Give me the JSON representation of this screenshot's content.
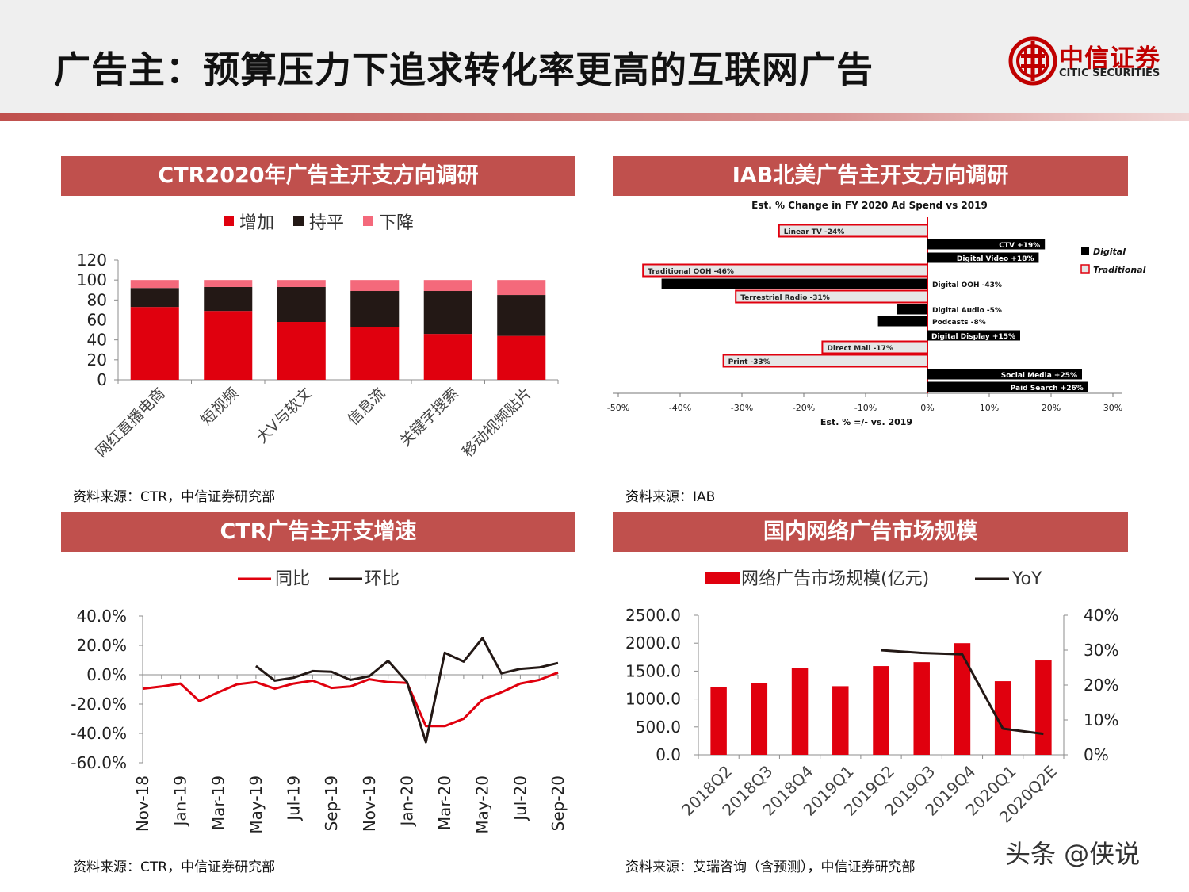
{
  "header": {
    "title": "广告主：预算压力下追求转化率更高的互联网广告",
    "logo_cn": "中信证券",
    "logo_en": "CITIC SECURITIES",
    "brand_color": "#c00000"
  },
  "panels": {
    "p1": {
      "title": "CTR2020年广告主开支方向调研",
      "source": "资料来源：CTR，中信证券研究部"
    },
    "p2": {
      "title": "IAB北美广告主开支方向调研",
      "source": "资料来源：IAB"
    },
    "p3": {
      "title": "CTR广告主开支增速",
      "source": "资料来源：CTR，中信证券研究部"
    },
    "p4": {
      "title": "国内网络广告市场规模",
      "source": "资料来源：艾瑞咨询（含预测），中信证券研究部"
    }
  },
  "watermark": "头条 @侠说",
  "chart_data": [
    {
      "type": "bar",
      "stacked": true,
      "categories": [
        "网红直播电商",
        "短视频",
        "大V与软文",
        "信息流",
        "关键字搜索",
        "移动视频贴片"
      ],
      "series": [
        {
          "name": "增加",
          "color": "#e0000e",
          "values": [
            73,
            69,
            58,
            53,
            46,
            44
          ]
        },
        {
          "name": "持平",
          "color": "#231815",
          "values": [
            19,
            24,
            35,
            36,
            43,
            41
          ]
        },
        {
          "name": "下降",
          "color": "#f4697b",
          "values": [
            8,
            7,
            7,
            11,
            11,
            15
          ]
        }
      ],
      "yticks": [
        "0",
        "20",
        "40",
        "60",
        "80",
        "100",
        "120"
      ],
      "ylim": [
        0,
        120
      ],
      "legend": "top"
    },
    {
      "type": "bar",
      "orientation": "horizontal",
      "title": "Est. % Change in FY 2020 Ad Spend vs 2019",
      "xlabel": "Est. % =/- vs. 2019",
      "xlim": [
        -50,
        30
      ],
      "xticks": [
        "-50%",
        "-40%",
        "-30%",
        "-20%",
        "-10%",
        "0%",
        "10%",
        "20%",
        "30%"
      ],
      "legend_labels": [
        "Digital",
        "Traditional"
      ],
      "legend": "right",
      "colors": {
        "digital": "#000000",
        "traditional": "#e6e6e6",
        "traditional_border": "#e0000e"
      },
      "bars": [
        {
          "label": "Linear TV -24%",
          "value": -24,
          "kind": "traditional"
        },
        {
          "label": "CTV +19%",
          "value": 19,
          "kind": "digital"
        },
        {
          "label": "Digital Video +18%",
          "value": 18,
          "kind": "digital"
        },
        {
          "label": "Traditional OOH -46%",
          "value": -46,
          "kind": "traditional"
        },
        {
          "label": "Digital OOH -43%",
          "value": -43,
          "kind": "digital"
        },
        {
          "label": "Terrestrial Radio -31%",
          "value": -31,
          "kind": "traditional"
        },
        {
          "label": "Digital Audio -5%",
          "value": -5,
          "kind": "digital"
        },
        {
          "label": "Podcasts -8%",
          "value": -8,
          "kind": "digital"
        },
        {
          "label": "Digital Display +15%",
          "value": 15,
          "kind": "digital"
        },
        {
          "label": "Direct Mail -17%",
          "value": -17,
          "kind": "traditional"
        },
        {
          "label": "Print -33%",
          "value": -33,
          "kind": "traditional"
        },
        {
          "label": "Social Media +25%",
          "value": 25,
          "kind": "digital"
        },
        {
          "label": "Paid Search +26%",
          "value": 26,
          "kind": "digital"
        }
      ]
    },
    {
      "type": "line",
      "x_count": 23,
      "x_ticks": [
        "Nov-18",
        "Jan-19",
        "Mar-19",
        "May-19",
        "Jul-19",
        "Sep-19",
        "Nov-19",
        "Jan-20",
        "Mar-20",
        "May-20",
        "Jul-20",
        "Sep-20"
      ],
      "series": [
        {
          "name": "同比",
          "color": "#e0000e",
          "values": [
            -9.5,
            -8,
            -6,
            -18,
            -12,
            -6.5,
            -5,
            -9.5,
            -6,
            -4,
            -9,
            -8,
            -3,
            -5,
            -5.5,
            -35,
            -35,
            -30,
            -17,
            -12,
            -6,
            -3.5,
            1.5
          ]
        },
        {
          "name": "环比",
          "color": "#231815",
          "values": [
            null,
            null,
            null,
            null,
            null,
            null,
            6,
            -4,
            -2,
            2.5,
            2,
            -3.5,
            -1,
            9.5,
            -5,
            -46,
            15,
            9,
            25,
            1,
            4,
            5,
            8
          ]
        }
      ],
      "yticks": [
        "-60.0%",
        "-40.0%",
        "-20.0%",
        "0.0%",
        "20.0%",
        "40.0%"
      ],
      "ylim": [
        -60,
        40
      ],
      "legend": "top"
    },
    {
      "type": "bar",
      "categories": [
        "2018Q2",
        "2018Q3",
        "2018Q4",
        "2019Q1",
        "2019Q2",
        "2019Q3",
        "2019Q4",
        "2020Q1",
        "2020Q2E"
      ],
      "series": [
        {
          "name": "网络广告市场规模(亿元)",
          "color": "#e0000e",
          "values": [
            1220,
            1280,
            1550,
            1230,
            1590,
            1660,
            2000,
            1320,
            1690
          ]
        }
      ],
      "line_series": [
        {
          "name": "YoY",
          "color": "#231815",
          "axis": "right",
          "values": [
            null,
            null,
            null,
            null,
            30,
            29.2,
            28.8,
            7.5,
            6
          ]
        }
      ],
      "yticks_left": [
        "0.0",
        "500.0",
        "1000.0",
        "1500.0",
        "2000.0",
        "2500.0"
      ],
      "ylim_left": [
        0,
        2500
      ],
      "yticks_right": [
        "0%",
        "10%",
        "20%",
        "30%",
        "40%"
      ],
      "ylim_right": [
        0,
        40
      ],
      "legend": "top"
    }
  ]
}
